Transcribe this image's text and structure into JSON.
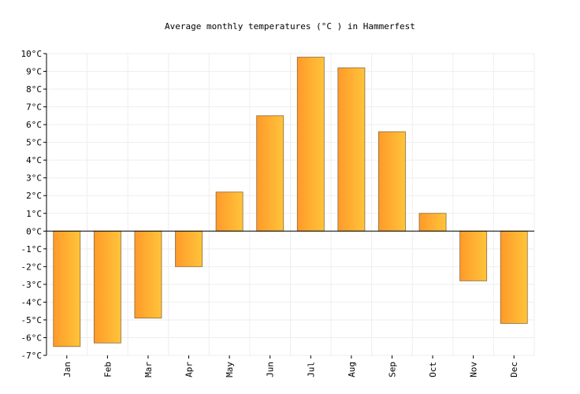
{
  "chart_data": {
    "type": "bar",
    "title": "Average monthly temperatures (°C ) in Hammerfest",
    "xlabel": "",
    "ylabel": "",
    "categories": [
      "Jan",
      "Feb",
      "Mar",
      "Apr",
      "May",
      "Jun",
      "Jul",
      "Aug",
      "Sep",
      "Oct",
      "Nov",
      "Dec"
    ],
    "values": [
      -6.5,
      -6.3,
      -4.9,
      -2.0,
      2.2,
      6.5,
      9.8,
      9.2,
      5.6,
      1.0,
      -2.8,
      -5.2
    ],
    "ylim": [
      -7,
      10
    ],
    "yticks": [
      "-7°C",
      "-6°C",
      "-5°C",
      "-4°C",
      "-3°C",
      "-2°C",
      "-1°C",
      "0°C",
      "1°C",
      "2°C",
      "3°C",
      "4°C",
      "5°C",
      "6°C",
      "7°C",
      "8°C",
      "9°C",
      "10°C"
    ],
    "grid": true,
    "colors": {
      "bar_start": "#ff9a2a",
      "bar_end": "#ffc43a",
      "bar_stroke": "#8a6a3a",
      "grid": "#eeeeee"
    }
  }
}
